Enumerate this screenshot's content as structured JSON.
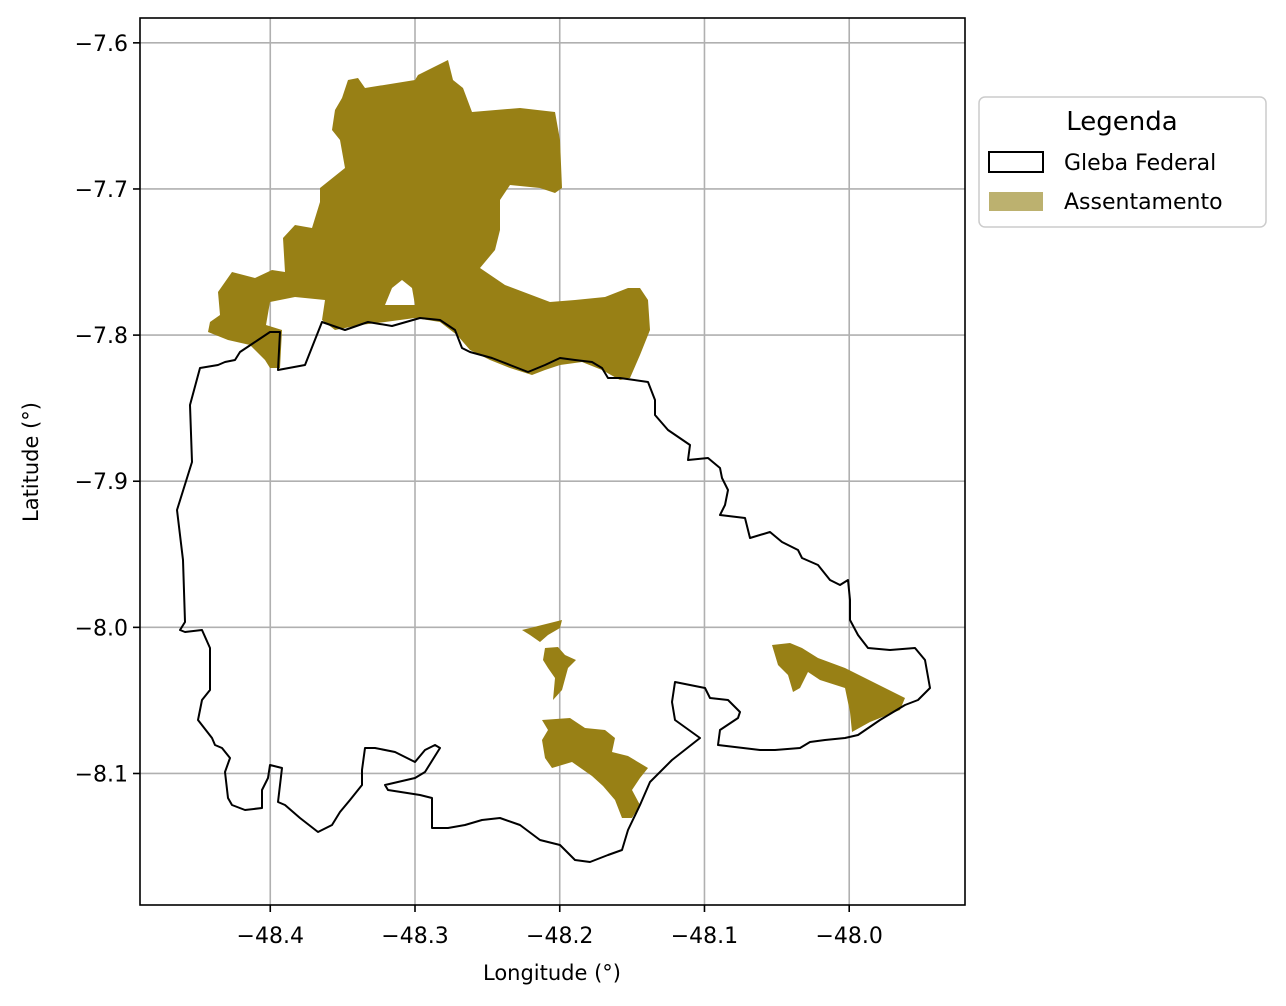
{
  "map": {
    "xlabel": "Longitude (°)",
    "ylabel": "Latitude (°)",
    "x_ticks": [
      -48.4,
      -48.3,
      -48.2,
      -48.1,
      -48.0
    ],
    "x_tick_labels": [
      "−48.4",
      "−48.3",
      "−48.2",
      "−48.1",
      "−48.0"
    ],
    "y_ticks": [
      -7.6,
      -7.7,
      -7.8,
      -7.9,
      -8.0,
      -8.1
    ],
    "y_tick_labels": [
      "−7.6",
      "−7.7",
      "−7.8",
      "−7.9",
      "−8.0",
      "−8.1"
    ],
    "xlim": [
      -48.49,
      -47.92
    ],
    "ylim": [
      -8.19,
      -7.583
    ],
    "grid": true,
    "legend": {
      "title": "Legenda",
      "position": "outside-right-top",
      "items": [
        {
          "label": "Gleba Federal",
          "style": "outline",
          "color": "#000000"
        },
        {
          "label": "Assentamento",
          "style": "fill",
          "color": "#bcb16f"
        }
      ]
    },
    "colors": {
      "assentamento_fill": "#988015",
      "legend_assentamento": "#bcb16f",
      "gleba_edge": "#000000",
      "grid": "#b0b0b0"
    }
  }
}
